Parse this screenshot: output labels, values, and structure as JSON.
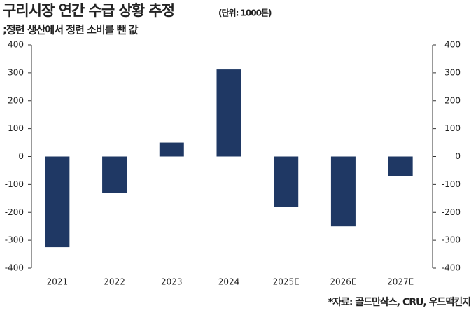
{
  "chart_data": {
    "type": "bar",
    "title": "구리시장 연간 수급 상황 추정",
    "unit": "(단위: 1000톤)",
    "subtitle": ";정련 생산에서 정련 소비를 뺀 값",
    "source": "*자료: 골드만삭스, CRU, 우드맥킨지",
    "categories": [
      "2021",
      "2022",
      "2023",
      "2024",
      "2025E",
      "2026E",
      "2027E"
    ],
    "values": [
      -325,
      -130,
      50,
      312,
      -180,
      -250,
      -70
    ],
    "color": "#1f3864",
    "ylim": [
      -400,
      400
    ],
    "yticks": [
      -400,
      -300,
      -200,
      -100,
      0,
      100,
      200,
      300,
      400
    ],
    "y2lim": [
      -400,
      400
    ],
    "y2ticks": [
      -400,
      -300,
      -200,
      -100,
      0,
      100,
      200,
      300,
      400
    ]
  }
}
